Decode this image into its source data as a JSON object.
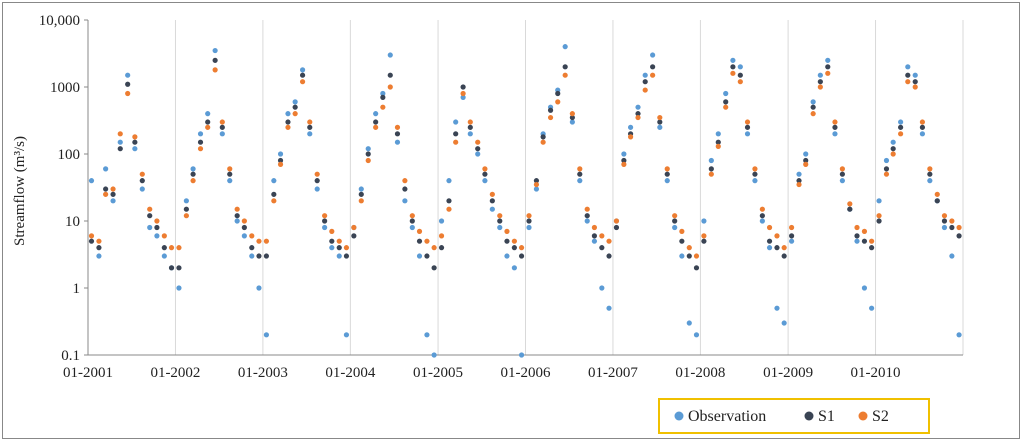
{
  "chart_data": {
    "type": "scatter",
    "ylabel": "Streamflow (m³/s)",
    "yscale": "log",
    "ylim": [
      0.1,
      10000
    ],
    "xlim": [
      "2001-01-01",
      "2011-01-01"
    ],
    "y_tick_labels": [
      "0.1",
      "1",
      "10",
      "100",
      "1000",
      "10,000"
    ],
    "y_tick_values": [
      0.1,
      1,
      10,
      100,
      1000,
      10000
    ],
    "x_tick_labels": [
      "01-2001",
      "01-2002",
      "01-2003",
      "01-2004",
      "01-2005",
      "01-2006",
      "01-2007",
      "01-2008",
      "01-2009",
      "01-2010"
    ],
    "x_tick_values": [
      "2001-01-01",
      "2002-01-01",
      "2003-01-01",
      "2004-01-01",
      "2005-01-01",
      "2006-01-01",
      "2007-01-01",
      "2008-01-01",
      "2009-01-01",
      "2010-01-01"
    ],
    "grid": "vertical",
    "legend_position": "bottom-right",
    "series": [
      {
        "name": "Observation",
        "color": "#5b9bd5",
        "x": [
          "2001-01-01",
          "2001-02-01",
          "2001-03-01",
          "2001-04-01",
          "2001-05-01",
          "2001-06-01",
          "2001-07-01",
          "2001-08-01",
          "2001-09-01",
          "2001-10-01",
          "2001-11-01",
          "2001-12-01",
          "2002-01-01",
          "2002-02-01",
          "2002-03-01",
          "2002-04-01",
          "2002-05-01",
          "2002-06-01",
          "2002-07-01",
          "2002-08-01",
          "2002-09-01",
          "2002-10-01",
          "2002-11-01",
          "2002-12-01",
          "2003-01-01",
          "2003-02-01",
          "2003-03-01",
          "2003-04-01",
          "2003-05-01",
          "2003-06-01",
          "2003-07-01",
          "2003-08-01",
          "2003-09-01",
          "2003-10-01",
          "2003-11-01",
          "2003-12-01",
          "2004-01-01",
          "2004-02-01",
          "2004-03-01",
          "2004-04-01",
          "2004-05-01",
          "2004-06-01",
          "2004-07-01",
          "2004-08-01",
          "2004-09-01",
          "2004-10-01",
          "2004-11-01",
          "2004-12-01",
          "2005-01-01",
          "2005-02-01",
          "2005-03-01",
          "2005-04-01",
          "2005-05-01",
          "2005-06-01",
          "2005-07-01",
          "2005-08-01",
          "2005-09-01",
          "2005-10-01",
          "2005-11-01",
          "2005-12-01",
          "2006-01-01",
          "2006-02-01",
          "2006-03-01",
          "2006-04-01",
          "2006-05-01",
          "2006-06-01",
          "2006-07-01",
          "2006-08-01",
          "2006-09-01",
          "2006-10-01",
          "2006-11-01",
          "2006-12-01",
          "2007-01-01",
          "2007-02-01",
          "2007-03-01",
          "2007-04-01",
          "2007-05-01",
          "2007-06-01",
          "2007-07-01",
          "2007-08-01",
          "2007-09-01",
          "2007-10-01",
          "2007-11-01",
          "2007-12-01",
          "2008-01-01",
          "2008-02-01",
          "2008-03-01",
          "2008-04-01",
          "2008-05-01",
          "2008-06-01",
          "2008-07-01",
          "2008-08-01",
          "2008-09-01",
          "2008-10-01",
          "2008-11-01",
          "2008-12-01",
          "2009-01-01",
          "2009-02-01",
          "2009-03-01",
          "2009-04-01",
          "2009-05-01",
          "2009-06-01",
          "2009-07-01",
          "2009-08-01",
          "2009-09-01",
          "2009-10-01",
          "2009-11-01",
          "2009-12-01",
          "2010-01-01",
          "2010-02-01",
          "2010-03-01",
          "2010-04-01",
          "2010-05-01",
          "2010-06-01",
          "2010-07-01",
          "2010-08-01",
          "2010-09-01",
          "2010-10-01",
          "2010-11-01",
          "2010-12-01"
        ],
        "y": [
          40,
          3,
          60,
          20,
          150,
          1500,
          120,
          30,
          8,
          6,
          3,
          2,
          1,
          20,
          60,
          200,
          400,
          3500,
          200,
          40,
          10,
          6,
          3,
          1,
          0.2,
          40,
          100,
          400,
          600,
          1800,
          200,
          30,
          8,
          4,
          3,
          0.2,
          8,
          30,
          120,
          400,
          800,
          3000,
          150,
          20,
          8,
          3,
          0.2,
          0.1,
          10,
          40,
          300,
          700,
          200,
          100,
          40,
          15,
          8,
          3,
          2,
          0.1,
          8,
          30,
          200,
          500,
          900,
          4000,
          300,
          40,
          10,
          5,
          1,
          0.5,
          10,
          100,
          250,
          500,
          1500,
          3000,
          250,
          40,
          8,
          3,
          0.3,
          0.2,
          10,
          80,
          200,
          800,
          2500,
          2000,
          200,
          40,
          10,
          4,
          0.5,
          0.3,
          5,
          50,
          100,
          600,
          1500,
          2500,
          200,
          40,
          15,
          5,
          1,
          0.5,
          20,
          80,
          150,
          300,
          2000,
          1500,
          200,
          40,
          20,
          8,
          3,
          0.2
        ]
      },
      {
        "name": "S1",
        "color": "#3a4454",
        "x": [
          "2001-01-01",
          "2001-02-01",
          "2001-03-01",
          "2001-04-01",
          "2001-05-01",
          "2001-06-01",
          "2001-07-01",
          "2001-08-01",
          "2001-09-01",
          "2001-10-01",
          "2001-11-01",
          "2001-12-01",
          "2002-01-01",
          "2002-02-01",
          "2002-03-01",
          "2002-04-01",
          "2002-05-01",
          "2002-06-01",
          "2002-07-01",
          "2002-08-01",
          "2002-09-01",
          "2002-10-01",
          "2002-11-01",
          "2002-12-01",
          "2003-01-01",
          "2003-02-01",
          "2003-03-01",
          "2003-04-01",
          "2003-05-01",
          "2003-06-01",
          "2003-07-01",
          "2003-08-01",
          "2003-09-01",
          "2003-10-01",
          "2003-11-01",
          "2003-12-01",
          "2004-01-01",
          "2004-02-01",
          "2004-03-01",
          "2004-04-01",
          "2004-05-01",
          "2004-06-01",
          "2004-07-01",
          "2004-08-01",
          "2004-09-01",
          "2004-10-01",
          "2004-11-01",
          "2004-12-01",
          "2005-01-01",
          "2005-02-01",
          "2005-03-01",
          "2005-04-01",
          "2005-05-01",
          "2005-06-01",
          "2005-07-01",
          "2005-08-01",
          "2005-09-01",
          "2005-10-01",
          "2005-11-01",
          "2005-12-01",
          "2006-01-01",
          "2006-02-01",
          "2006-03-01",
          "2006-04-01",
          "2006-05-01",
          "2006-06-01",
          "2006-07-01",
          "2006-08-01",
          "2006-09-01",
          "2006-10-01",
          "2006-11-01",
          "2006-12-01",
          "2007-01-01",
          "2007-02-01",
          "2007-03-01",
          "2007-04-01",
          "2007-05-01",
          "2007-06-01",
          "2007-07-01",
          "2007-08-01",
          "2007-09-01",
          "2007-10-01",
          "2007-11-01",
          "2007-12-01",
          "2008-01-01",
          "2008-02-01",
          "2008-03-01",
          "2008-04-01",
          "2008-05-01",
          "2008-06-01",
          "2008-07-01",
          "2008-08-01",
          "2008-09-01",
          "2008-10-01",
          "2008-11-01",
          "2008-12-01",
          "2009-01-01",
          "2009-02-01",
          "2009-03-01",
          "2009-04-01",
          "2009-05-01",
          "2009-06-01",
          "2009-07-01",
          "2009-08-01",
          "2009-09-01",
          "2009-10-01",
          "2009-11-01",
          "2009-12-01",
          "2010-01-01",
          "2010-02-01",
          "2010-03-01",
          "2010-04-01",
          "2010-05-01",
          "2010-06-01",
          "2010-07-01",
          "2010-08-01",
          "2010-09-01",
          "2010-10-01",
          "2010-11-01",
          "2010-12-01"
        ],
        "y": [
          5,
          4,
          30,
          25,
          120,
          1100,
          150,
          40,
          12,
          8,
          4,
          2,
          2,
          15,
          50,
          150,
          300,
          2500,
          250,
          50,
          12,
          8,
          4,
          3,
          3,
          25,
          80,
          300,
          500,
          1500,
          250,
          40,
          10,
          5,
          4,
          3,
          6,
          25,
          100,
          300,
          700,
          1500,
          200,
          30,
          10,
          5,
          3,
          2,
          4,
          20,
          200,
          1000,
          250,
          120,
          50,
          20,
          10,
          5,
          4,
          3,
          10,
          40,
          180,
          450,
          800,
          2000,
          350,
          50,
          12,
          6,
          4,
          3,
          8,
          80,
          200,
          400,
          1200,
          2000,
          300,
          50,
          10,
          5,
          3,
          2,
          5,
          60,
          150,
          600,
          2000,
          1500,
          250,
          50,
          12,
          5,
          4,
          3,
          6,
          40,
          80,
          500,
          1200,
          2000,
          250,
          50,
          15,
          6,
          5,
          4,
          10,
          60,
          120,
          250,
          1500,
          1200,
          250,
          50,
          20,
          10,
          8,
          6
        ]
      },
      {
        "name": "S2",
        "color": "#ed7d31",
        "x": [
          "2001-01-01",
          "2001-02-01",
          "2001-03-01",
          "2001-04-01",
          "2001-05-01",
          "2001-06-01",
          "2001-07-01",
          "2001-08-01",
          "2001-09-01",
          "2001-10-01",
          "2001-11-01",
          "2001-12-01",
          "2002-01-01",
          "2002-02-01",
          "2002-03-01",
          "2002-04-01",
          "2002-05-01",
          "2002-06-01",
          "2002-07-01",
          "2002-08-01",
          "2002-09-01",
          "2002-10-01",
          "2002-11-01",
          "2002-12-01",
          "2003-01-01",
          "2003-02-01",
          "2003-03-01",
          "2003-04-01",
          "2003-05-01",
          "2003-06-01",
          "2003-07-01",
          "2003-08-01",
          "2003-09-01",
          "2003-10-01",
          "2003-11-01",
          "2003-12-01",
          "2004-01-01",
          "2004-02-01",
          "2004-03-01",
          "2004-04-01",
          "2004-05-01",
          "2004-06-01",
          "2004-07-01",
          "2004-08-01",
          "2004-09-01",
          "2004-10-01",
          "2004-11-01",
          "2004-12-01",
          "2005-01-01",
          "2005-02-01",
          "2005-03-01",
          "2005-04-01",
          "2005-05-01",
          "2005-06-01",
          "2005-07-01",
          "2005-08-01",
          "2005-09-01",
          "2005-10-01",
          "2005-11-01",
          "2005-12-01",
          "2006-01-01",
          "2006-02-01",
          "2006-03-01",
          "2006-04-01",
          "2006-05-01",
          "2006-06-01",
          "2006-07-01",
          "2006-08-01",
          "2006-09-01",
          "2006-10-01",
          "2006-11-01",
          "2006-12-01",
          "2007-01-01",
          "2007-02-01",
          "2007-03-01",
          "2007-04-01",
          "2007-05-01",
          "2007-06-01",
          "2007-07-01",
          "2007-08-01",
          "2007-09-01",
          "2007-10-01",
          "2007-11-01",
          "2007-12-01",
          "2008-01-01",
          "2008-02-01",
          "2008-03-01",
          "2008-04-01",
          "2008-05-01",
          "2008-06-01",
          "2008-07-01",
          "2008-08-01",
          "2008-09-01",
          "2008-10-01",
          "2008-11-01",
          "2008-12-01",
          "2009-01-01",
          "2009-02-01",
          "2009-03-01",
          "2009-04-01",
          "2009-05-01",
          "2009-06-01",
          "2009-07-01",
          "2009-08-01",
          "2009-09-01",
          "2009-10-01",
          "2009-11-01",
          "2009-12-01",
          "2010-01-01",
          "2010-02-01",
          "2010-03-01",
          "2010-04-01",
          "2010-05-01",
          "2010-06-01",
          "2010-07-01",
          "2010-08-01",
          "2010-09-01",
          "2010-10-01",
          "2010-11-01",
          "2010-12-01"
        ],
        "y": [
          6,
          5,
          25,
          30,
          200,
          800,
          180,
          50,
          15,
          10,
          6,
          4,
          4,
          12,
          40,
          120,
          250,
          1800,
          300,
          60,
          15,
          10,
          6,
          5,
          5,
          20,
          70,
          250,
          400,
          1200,
          300,
          50,
          12,
          7,
          5,
          4,
          8,
          20,
          80,
          250,
          500,
          1000,
          250,
          40,
          12,
          7,
          5,
          4,
          6,
          15,
          150,
          800,
          300,
          150,
          60,
          25,
          12,
          7,
          5,
          4,
          12,
          35,
          150,
          350,
          600,
          1500,
          400,
          60,
          15,
          8,
          6,
          5,
          10,
          70,
          180,
          350,
          900,
          1500,
          350,
          60,
          12,
          7,
          4,
          3,
          6,
          50,
          130,
          500,
          1600,
          1200,
          300,
          60,
          15,
          8,
          6,
          4,
          8,
          35,
          70,
          400,
          1000,
          1600,
          300,
          60,
          18,
          8,
          7,
          5,
          12,
          50,
          100,
          200,
          1200,
          1000,
          300,
          60,
          25,
          12,
          10,
          8
        ]
      }
    ]
  }
}
